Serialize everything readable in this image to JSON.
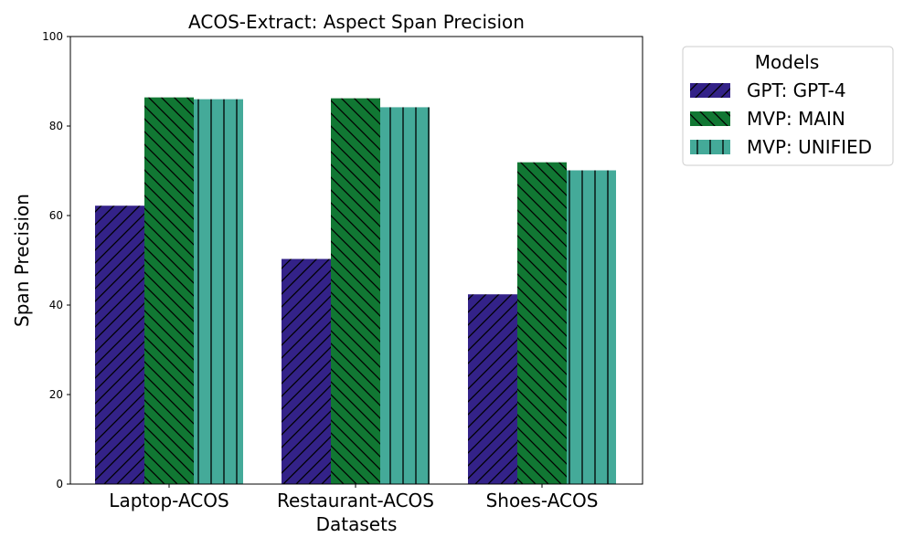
{
  "chart_data": {
    "type": "bar",
    "title": "ACOS-Extract: Aspect Span Precision",
    "xlabel": "Datasets",
    "ylabel": "Span Precision",
    "ylim": [
      0,
      100
    ],
    "yticks": [
      0,
      20,
      40,
      60,
      80,
      100
    ],
    "categories": [
      "Laptop-ACOS",
      "Restaurant-ACOS",
      "Shoes-ACOS"
    ],
    "series": [
      {
        "name": "GPT: GPT-4",
        "values": [
          62.2,
          50.3,
          42.4
        ],
        "color": "#332288",
        "hatch": "forward-diagonal"
      },
      {
        "name": "MVP: MAIN",
        "values": [
          86.4,
          86.2,
          71.9
        ],
        "color": "#117733",
        "hatch": "back-diagonal"
      },
      {
        "name": "MVP: UNIFIED",
        "values": [
          86.0,
          84.2,
          70.1
        ],
        "color": "#44AA99",
        "hatch": "vertical"
      }
    ],
    "legend": {
      "title": "Models",
      "placement": "outside-top-right"
    },
    "grid": false
  }
}
